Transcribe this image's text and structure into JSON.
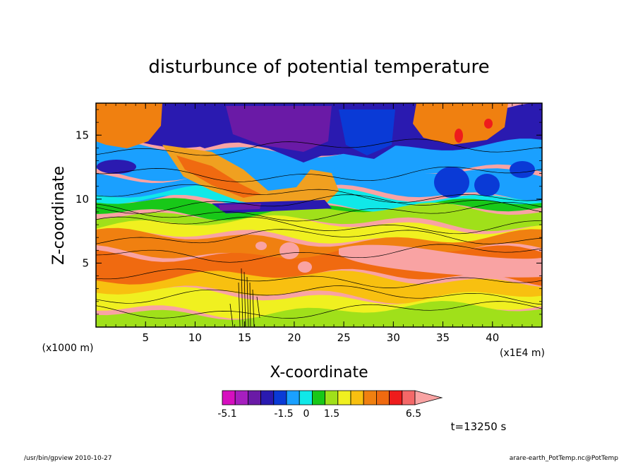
{
  "chart_data": {
    "type": "heatmap",
    "title": "disturbunce of potential temperature",
    "xlabel": "X-coordinate",
    "ylabel": "Z-coordinate",
    "x_unit_label": "(x1000 m)",
    "x_scale_label": "(x1E4 m)",
    "xlim": [
      0,
      45
    ],
    "ylim": [
      0,
      17.5
    ],
    "x_ticks": [
      "5",
      "10",
      "15",
      "20",
      "25",
      "30",
      "35",
      "40"
    ],
    "y_ticks": [
      "5",
      "10",
      "15"
    ],
    "time_label": "t=13250 s",
    "colorbar": {
      "tick_labels": [
        "-5.1",
        "-1.5",
        "0",
        "1.5",
        "6.5"
      ],
      "colors": [
        "#d60fbf",
        "#a61fbf",
        "#6a1aa6",
        "#2a1ab0",
        "#0a3ad6",
        "#1aa0ff",
        "#10e8e8",
        "#18c818",
        "#a0e01a",
        "#f0f020",
        "#f8c010",
        "#f08010",
        "#f06a10",
        "#ee1c1c",
        "#f46868",
        "#f9a3a3"
      ]
    },
    "regions": [
      {
        "zmin": 0.0,
        "zmax": 1.3,
        "level": "orange",
        "value": 1.8
      },
      {
        "zmin": 1.3,
        "zmax": 2.5,
        "level": "orange",
        "value": 2.2
      },
      {
        "zmin": 2.5,
        "zmax": 3.8,
        "level": "red",
        "value": 3.2
      },
      {
        "zmin": 3.8,
        "zmax": 5.8,
        "level": "pink",
        "value": 4.8
      },
      {
        "zmin": 5.8,
        "zmax": 7.0,
        "level": "red",
        "value": 3.6
      },
      {
        "zmin": 7.0,
        "zmax": 8.0,
        "level": "orange",
        "value": 2.6
      },
      {
        "zmin": 8.0,
        "zmax": 9.0,
        "level": "orange-yellow",
        "value": 1.6
      },
      {
        "zmin": 9.0,
        "zmax": 9.6,
        "level": "yellow",
        "value": 0.8
      },
      {
        "zmin": 9.6,
        "zmax": 10.4,
        "level": "green",
        "value": 0.0
      },
      {
        "zmin": 10.4,
        "zmax": 12.0,
        "level": "cyan",
        "value": -0.7
      },
      {
        "zmin": 12.0,
        "zmax": 14.0,
        "level": "light-blue",
        "value": -1.2
      },
      {
        "zmin": 14.0,
        "zmax": 17.5,
        "level": "blue",
        "value": -2.2
      }
    ]
  },
  "footer": {
    "left": "/usr/bin/gpview   2010-10-27",
    "right": "arare-earth_PotTemp.nc@PotTemp"
  }
}
